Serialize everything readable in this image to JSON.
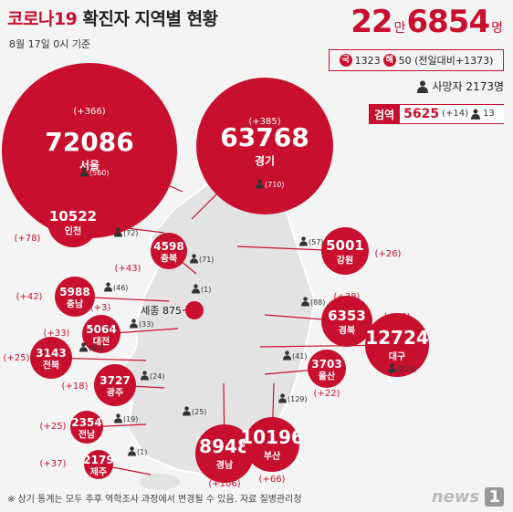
{
  "header": {
    "title_main": "코로나19",
    "title_rest": " 확진자 지역별 현황",
    "subtitle": "8월 17일 0시 기준",
    "total_man": "22",
    "total_man_unit": "만",
    "total_rest": "6854",
    "total_unit": "명"
  },
  "breakdown": {
    "domestic_tag": "국",
    "domestic": "1323",
    "overseas_tag": "해",
    "overseas_and_change": "50 (전일대비+1373)"
  },
  "deaths": {
    "label": "사망자 2173명"
  },
  "quarantine": {
    "label": "검역",
    "total": "5625",
    "change": "(+14)",
    "deaths": "13"
  },
  "regions": [
    {
      "name": "서울",
      "total": "72086",
      "change": "(+366)",
      "deaths": "(560)"
    },
    {
      "name": "경기",
      "total": "63768",
      "change": "(+385)",
      "deaths": "(710)"
    },
    {
      "name": "인천",
      "total": "10522",
      "change": "(+78)",
      "deaths": "(72)"
    },
    {
      "name": "충북",
      "total": "4598",
      "change": "(+43)",
      "deaths": "(71)"
    },
    {
      "name": "충남",
      "total": "5988",
      "change": "(+42)",
      "deaths": "(46)"
    },
    {
      "name": "세종",
      "total": "875",
      "change": "(+3)",
      "deaths": "(1)"
    },
    {
      "name": "대전",
      "total": "5064",
      "change": "(+33)",
      "deaths": "(33)"
    },
    {
      "name": "전북",
      "total": "3143",
      "change": "(+25)",
      "deaths": "(60)"
    },
    {
      "name": "광주",
      "total": "3727",
      "change": "(+18)",
      "deaths": "(24)"
    },
    {
      "name": "전남",
      "total": "2354",
      "change": "(+25)",
      "deaths": "(19)"
    },
    {
      "name": "제주",
      "total": "2179",
      "change": "(+37)",
      "deaths": "(1)"
    },
    {
      "name": "강원",
      "total": "5001",
      "change": "(+26)",
      "deaths": "(57)"
    },
    {
      "name": "경북",
      "total": "6353",
      "change": "(+38)",
      "deaths": "(88)"
    },
    {
      "name": "대구",
      "total": "12724",
      "change": "(+46)",
      "deaths": "(223)"
    },
    {
      "name": "울산",
      "total": "3703",
      "change": "(+22)",
      "deaths": "(41)"
    },
    {
      "name": "경남",
      "total": "8948",
      "change": "(+106)",
      "deaths": "(25)"
    },
    {
      "name": "부산",
      "total": "10196",
      "change": "(+66)",
      "deaths": "(129)"
    }
  ],
  "footer": "※ 상기 통계는 모두 추후 역학조사 과정에서 변경될 수 있음.  자료 질병관리청",
  "logo": {
    "text": "news",
    "mark": "1"
  },
  "colors": {
    "accent": "#c8102e",
    "map_fill": "#e3e3e3"
  }
}
